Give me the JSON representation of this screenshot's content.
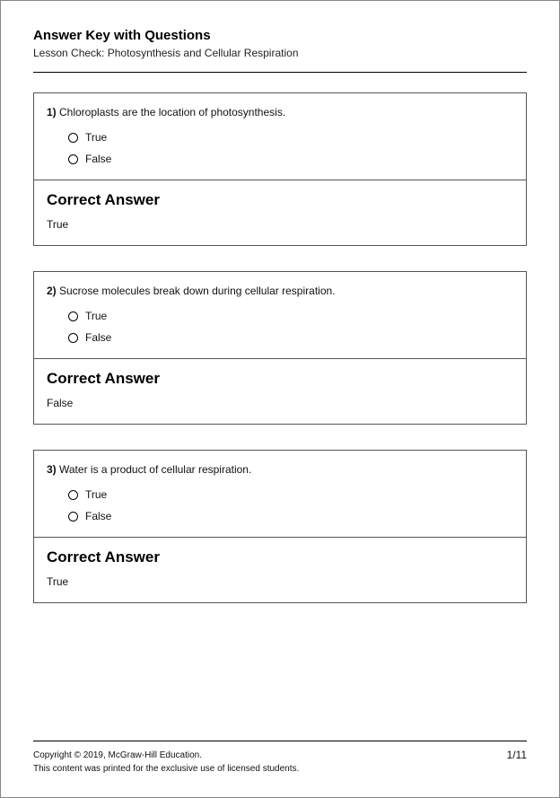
{
  "header": {
    "title": "Answer Key with Questions",
    "subtitle": "Lesson Check: Photosynthesis and Cellular Respiration"
  },
  "answer_heading": "Correct Answer",
  "option_true": "True",
  "option_false": "False",
  "questions": [
    {
      "num": "1)",
      "text": " Chloroplasts are the location of photosynthesis.",
      "answer": "True"
    },
    {
      "num": "2)",
      "text": " Sucrose molecules break down during cellular respiration.",
      "answer": "False"
    },
    {
      "num": "3)",
      "text": " Water is a product of cellular respiration.",
      "answer": "True"
    }
  ],
  "footer": {
    "copyright": "Copyright © 2019, McGraw-Hill Education.",
    "notice": "This content was printed for the exclusive use of licensed students.",
    "page": "1/11"
  }
}
